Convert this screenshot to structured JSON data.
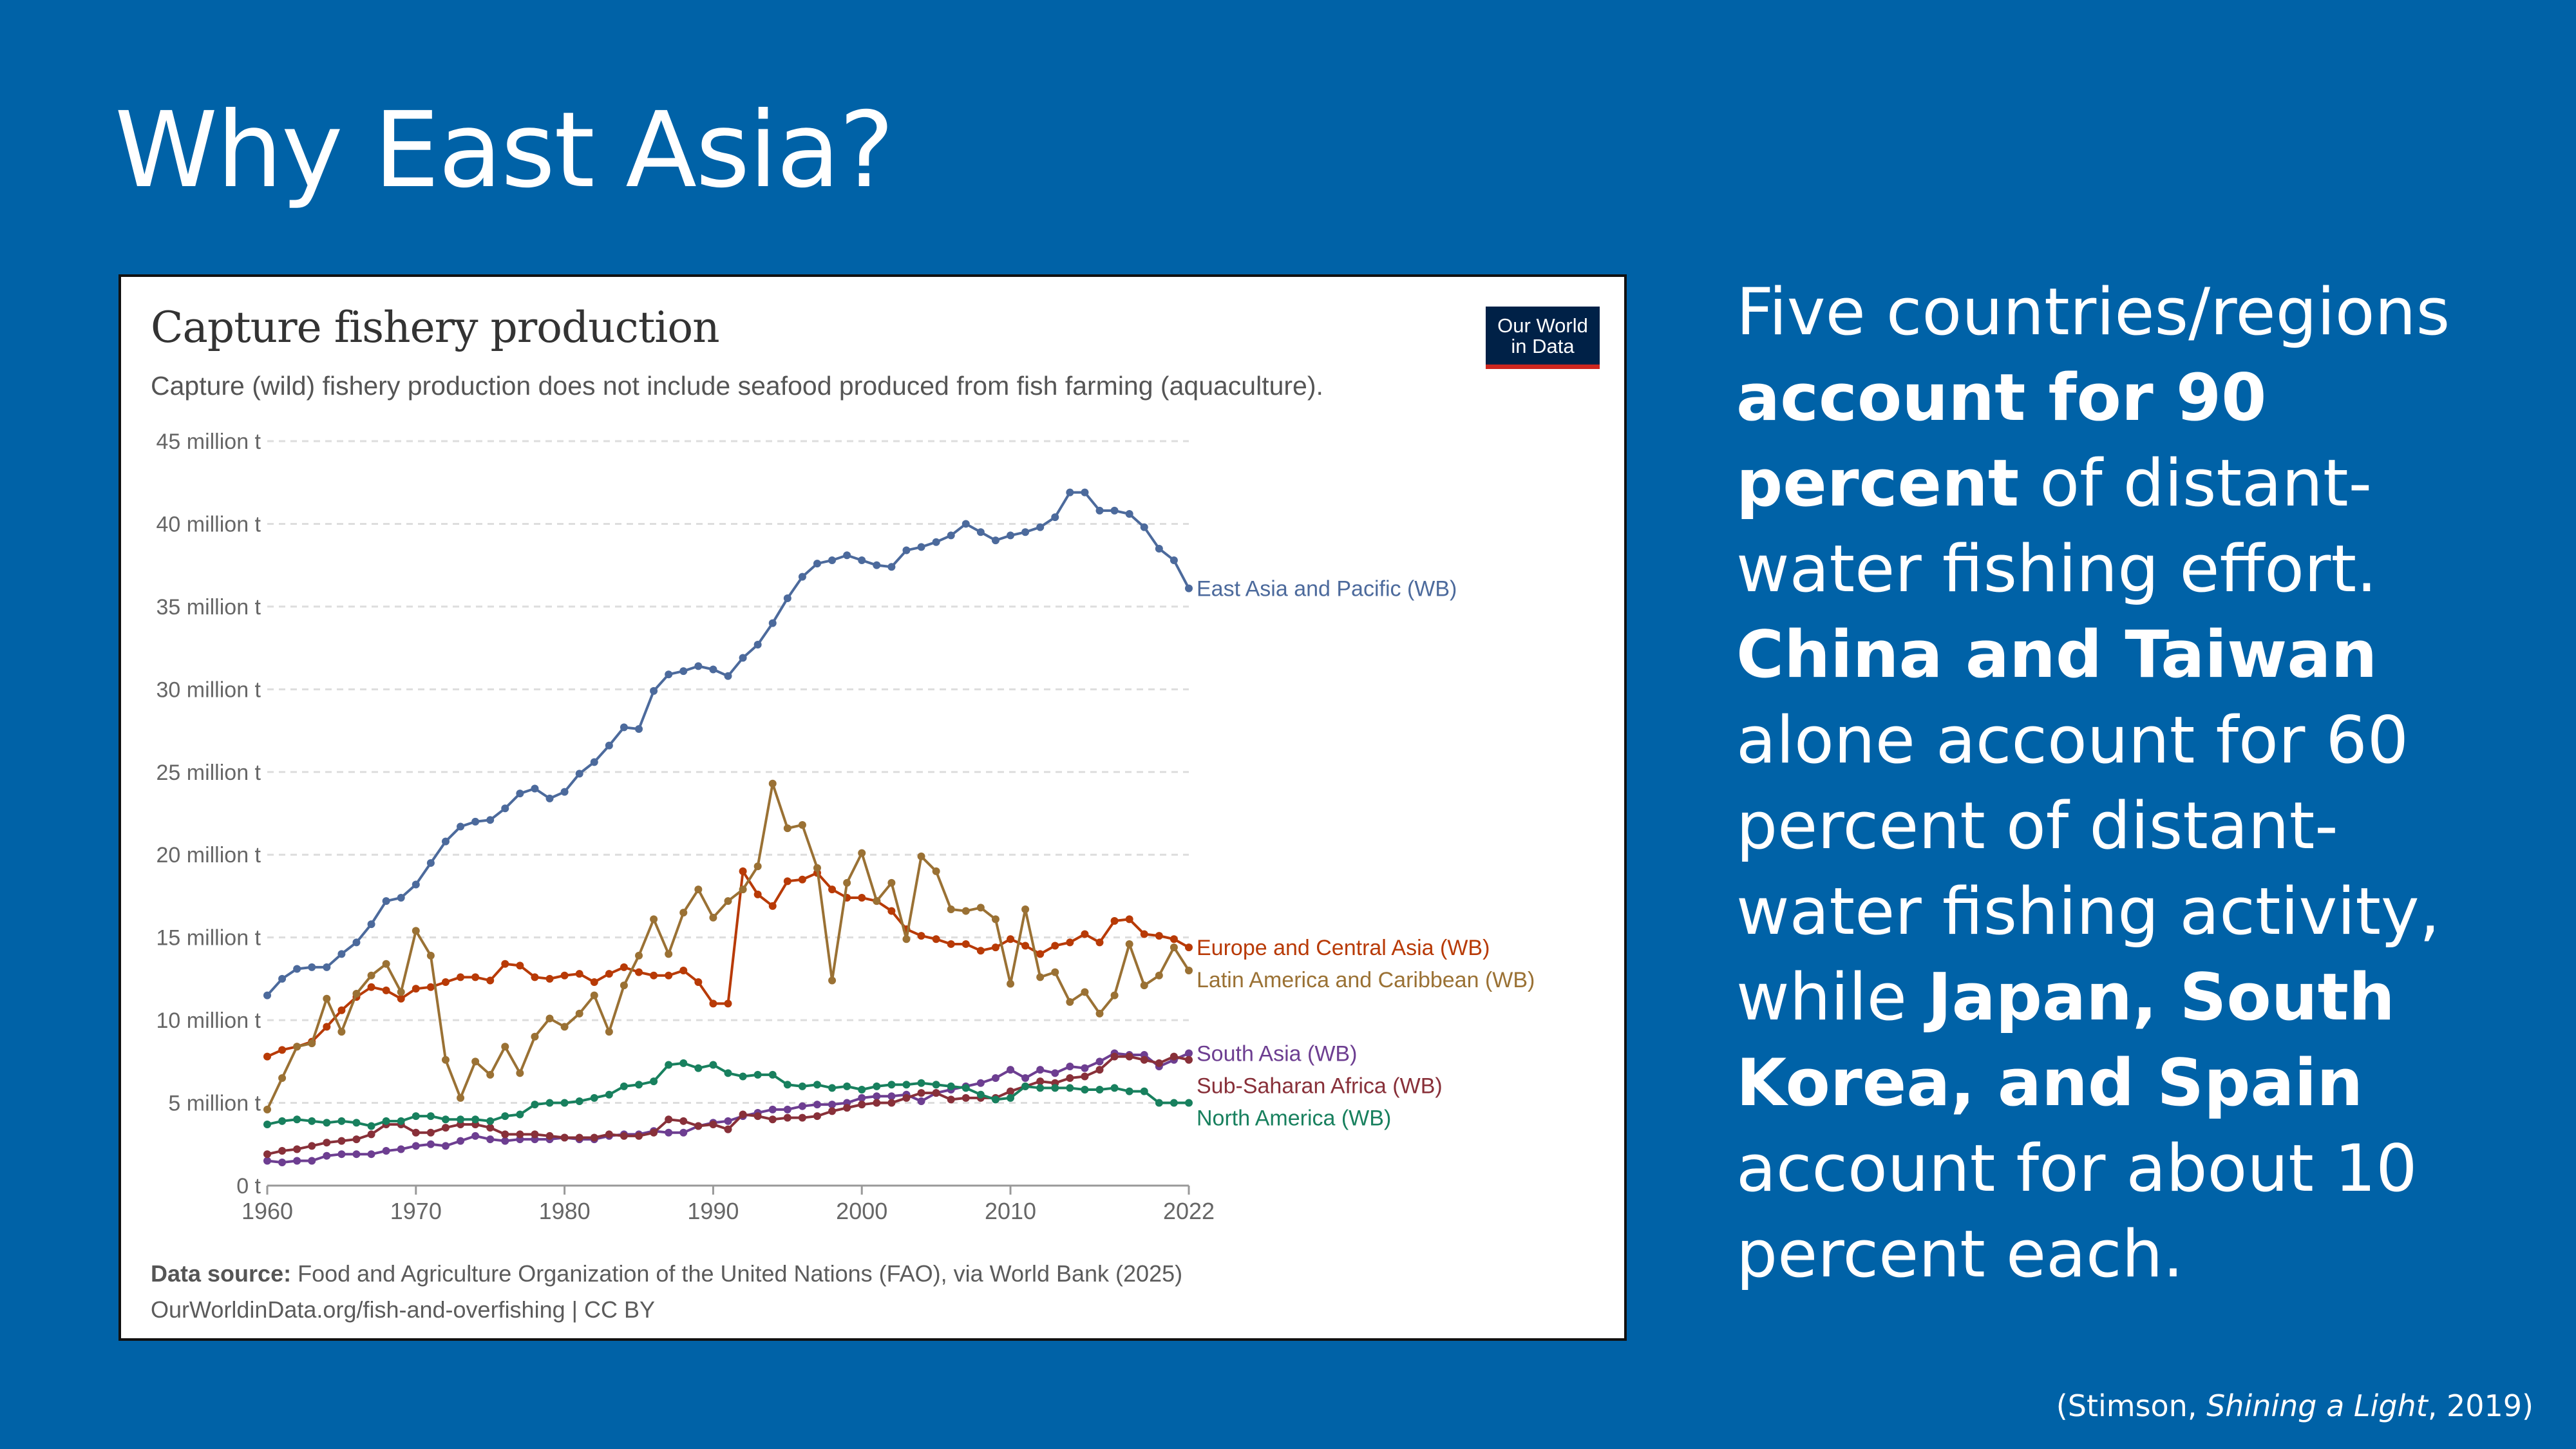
{
  "slide": {
    "title": "Why East Asia?",
    "side_text": [
      {
        "text": "Five countries/regions ",
        "bold": false
      },
      {
        "text": "account for 90 percent",
        "bold": true
      },
      {
        "text": " of distant-water fishing effort. ",
        "bold": false
      },
      {
        "text": "China and Taiwan",
        "bold": true
      },
      {
        "text": " alone account for 60 percent of distant-water fishing activity, while ",
        "bold": false
      },
      {
        "text": "Japan, South Korea, and Spain",
        "bold": true
      },
      {
        "text": " account for about 10 percent each.",
        "bold": false
      }
    ],
    "citation": {
      "pre": "(Stimson, ",
      "italic": "Shining a Light",
      "post": ", 2019)"
    },
    "background_color": "#0062a7"
  },
  "chart_data": {
    "type": "line",
    "title": "Capture fishery production",
    "subtitle": "Capture (wild) fishery production does not include seafood produced from fish farming (aquaculture).",
    "logo": "Our World in Data",
    "footer": {
      "source_label": "Data source:",
      "source_text": " Food and Agriculture Organization of the United Nations (FAO), via World Bank (2025)",
      "url_line": "OurWorldinData.org/fish-and-overfishing | CC BY"
    },
    "xlim": [
      1960,
      2022
    ],
    "ylim": [
      0,
      45
    ],
    "x_ticks": [
      "1960",
      "1970",
      "1980",
      "1990",
      "2000",
      "2010",
      "2022"
    ],
    "y_ticks": [
      "0 t",
      "5 million t",
      "10 million t",
      "15 million t",
      "20 million t",
      "25 million t",
      "30 million t",
      "35 million t",
      "40 million t",
      "45 million t"
    ],
    "y_unit": "million t",
    "grid": "horizontal dashed",
    "legend": "inline labels at right end of lines",
    "x": [
      1960,
      1961,
      1962,
      1963,
      1964,
      1965,
      1966,
      1967,
      1968,
      1969,
      1970,
      1971,
      1972,
      1973,
      1974,
      1975,
      1976,
      1977,
      1978,
      1979,
      1980,
      1981,
      1982,
      1983,
      1984,
      1985,
      1986,
      1987,
      1988,
      1989,
      1990,
      1991,
      1992,
      1993,
      1994,
      1995,
      1996,
      1997,
      1998,
      1999,
      2000,
      2001,
      2002,
      2003,
      2004,
      2005,
      2006,
      2007,
      2008,
      2009,
      2010,
      2011,
      2012,
      2013,
      2014,
      2015,
      2016,
      2017,
      2018,
      2019,
      2020,
      2021,
      2022
    ],
    "series": [
      {
        "name": "East Asia and Pacific (WB)",
        "color": "#4c6a9c",
        "values": [
          11.5,
          12.5,
          13.1,
          13.2,
          13.2,
          14.0,
          14.7,
          15.8,
          17.2,
          17.4,
          18.2,
          19.5,
          20.8,
          21.7,
          22.0,
          22.1,
          22.8,
          23.7,
          24.0,
          23.4,
          23.8,
          24.9,
          25.6,
          26.6,
          27.7,
          27.6,
          29.9,
          30.9,
          31.1,
          31.4,
          31.2,
          30.8,
          31.9,
          32.7,
          34.0,
          35.5,
          36.8,
          37.6,
          37.8,
          38.1,
          37.8,
          37.5,
          37.4,
          38.4,
          38.6,
          38.9,
          39.3,
          40.0,
          39.5,
          39.0,
          39.3,
          39.5,
          39.8,
          40.4,
          41.9,
          41.9,
          40.8,
          40.8,
          40.6,
          39.8,
          38.5,
          37.8,
          36.1
        ]
      },
      {
        "name": "Europe and Central Asia (WB)",
        "color": "#b83a06",
        "values": [
          7.8,
          8.2,
          8.4,
          8.7,
          9.6,
          10.6,
          11.4,
          12.0,
          11.8,
          11.3,
          11.9,
          12.0,
          12.3,
          12.6,
          12.6,
          12.4,
          13.4,
          13.3,
          12.6,
          12.5,
          12.7,
          12.8,
          12.3,
          12.8,
          13.2,
          12.9,
          12.7,
          12.7,
          13.0,
          12.3,
          11.0,
          11.0,
          19.0,
          17.6,
          16.9,
          18.4,
          18.5,
          18.9,
          17.9,
          17.4,
          17.4,
          17.2,
          16.6,
          15.5,
          15.1,
          14.9,
          14.6,
          14.6,
          14.2,
          14.4,
          14.9,
          14.5,
          14.0,
          14.5,
          14.7,
          15.2,
          14.7,
          16.0,
          16.1,
          15.2,
          15.1,
          14.9,
          14.4
        ]
      },
      {
        "name": "Latin America and Caribbean (WB)",
        "color": "#9a7134",
        "values": [
          4.6,
          6.5,
          8.4,
          8.6,
          11.3,
          9.3,
          11.6,
          12.7,
          13.4,
          11.7,
          15.4,
          13.9,
          7.6,
          5.3,
          7.5,
          6.7,
          8.4,
          6.8,
          9.0,
          10.1,
          9.6,
          10.4,
          11.5,
          9.3,
          12.1,
          13.9,
          16.1,
          14.0,
          16.5,
          17.9,
          16.2,
          17.2,
          17.9,
          19.3,
          24.3,
          21.6,
          21.8,
          19.2,
          12.4,
          18.3,
          20.1,
          17.2,
          18.3,
          14.9,
          19.9,
          19.0,
          16.7,
          16.6,
          16.8,
          16.1,
          12.2,
          16.7,
          12.6,
          12.9,
          11.1,
          11.7,
          10.4,
          11.5,
          14.6,
          12.1,
          12.7,
          14.4,
          13.0
        ]
      },
      {
        "name": "South Asia (WB)",
        "color": "#6d3e91",
        "values": [
          1.5,
          1.4,
          1.5,
          1.5,
          1.8,
          1.9,
          1.9,
          1.9,
          2.1,
          2.2,
          2.4,
          2.5,
          2.4,
          2.7,
          3.0,
          2.8,
          2.7,
          2.8,
          2.8,
          2.8,
          2.9,
          2.8,
          2.8,
          3.0,
          3.1,
          3.1,
          3.3,
          3.2,
          3.2,
          3.6,
          3.8,
          3.9,
          4.2,
          4.4,
          4.6,
          4.6,
          4.8,
          4.9,
          4.9,
          5.0,
          5.3,
          5.4,
          5.4,
          5.5,
          5.1,
          5.6,
          5.8,
          6.0,
          6.2,
          6.5,
          7.0,
          6.5,
          7.0,
          6.8,
          7.2,
          7.1,
          7.5,
          8.0,
          7.9,
          7.9,
          7.2,
          7.6,
          8.0
        ]
      },
      {
        "name": "Sub-Saharan Africa (WB)",
        "color": "#883039",
        "values": [
          1.9,
          2.1,
          2.2,
          2.4,
          2.6,
          2.7,
          2.8,
          3.1,
          3.7,
          3.7,
          3.2,
          3.2,
          3.5,
          3.7,
          3.7,
          3.5,
          3.1,
          3.1,
          3.1,
          3.0,
          2.9,
          2.9,
          2.9,
          3.1,
          3.0,
          3.0,
          3.2,
          4.0,
          3.9,
          3.6,
          3.7,
          3.4,
          4.3,
          4.2,
          4.0,
          4.1,
          4.1,
          4.2,
          4.5,
          4.7,
          4.9,
          5.0,
          5.0,
          5.3,
          5.6,
          5.6,
          5.2,
          5.3,
          5.3,
          5.3,
          5.7,
          6.0,
          6.3,
          6.2,
          6.5,
          6.6,
          7.0,
          7.8,
          7.8,
          7.6,
          7.4,
          7.8,
          7.6
        ]
      },
      {
        "name": "North America (WB)",
        "color": "#18805e",
        "values": [
          3.7,
          3.9,
          4.0,
          3.9,
          3.8,
          3.9,
          3.8,
          3.6,
          3.9,
          3.9,
          4.2,
          4.2,
          4.0,
          4.0,
          4.0,
          3.9,
          4.2,
          4.3,
          4.9,
          5.0,
          5.0,
          5.1,
          5.3,
          5.5,
          6.0,
          6.1,
          6.3,
          7.3,
          7.4,
          7.1,
          7.3,
          6.8,
          6.6,
          6.7,
          6.7,
          6.1,
          6.0,
          6.1,
          5.9,
          6.0,
          5.8,
          6.0,
          6.1,
          6.1,
          6.2,
          6.1,
          6.0,
          5.9,
          5.5,
          5.2,
          5.3,
          6.0,
          5.9,
          5.9,
          5.9,
          5.8,
          5.8,
          5.9,
          5.7,
          5.7,
          5.0,
          5.0,
          5.0
        ]
      }
    ]
  }
}
